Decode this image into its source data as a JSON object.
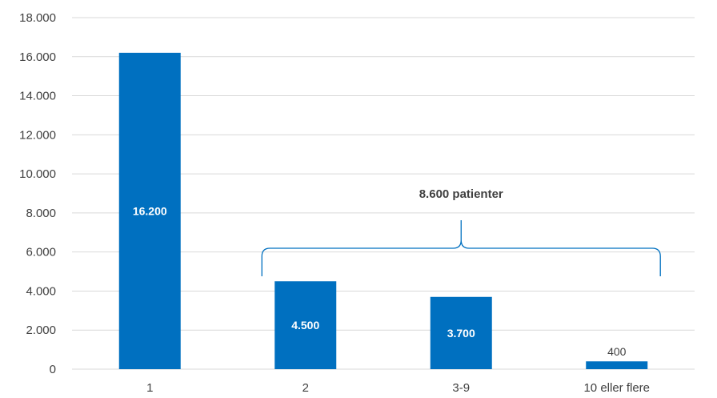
{
  "chart_data": {
    "type": "bar",
    "title": "",
    "xlabel": "",
    "ylabel": "",
    "categories": [
      "1",
      "2",
      "3-9",
      "10 eller flere"
    ],
    "values": [
      16200,
      4500,
      3700,
      400
    ],
    "data_labels": [
      "16.200",
      "4.500",
      "3.700",
      "400"
    ],
    "ylim": [
      0,
      18000
    ],
    "yticks": [
      0,
      2000,
      4000,
      6000,
      8000,
      10000,
      12000,
      14000,
      16000,
      18000
    ],
    "ytick_labels": [
      "0",
      "2.000",
      "4.000",
      "6.000",
      "8.000",
      "10.000",
      "12.000",
      "14.000",
      "16.000",
      "18.000"
    ],
    "grid": true,
    "legend": "none",
    "bar_color": "#0070C0",
    "grid_color": "#d9d9d9",
    "annotation": {
      "text": "8.600 patienter",
      "spans_categories": [
        "2",
        "3-9",
        "10 eller flere"
      ]
    }
  }
}
